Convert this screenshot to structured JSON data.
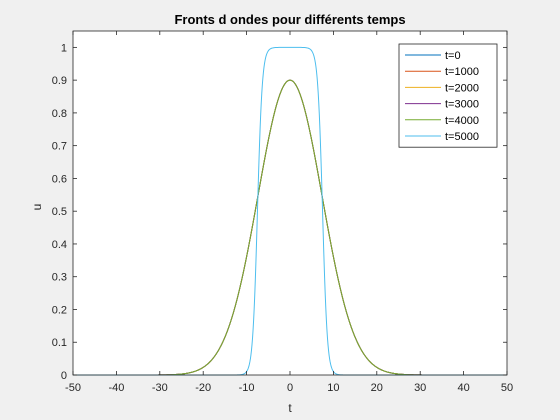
{
  "chart_data": {
    "type": "line",
    "title": "Fronts d ondes pour différents temps",
    "xlabel": "t",
    "ylabel": "u",
    "xlim": [
      -50,
      50
    ],
    "ylim": [
      0,
      1.05
    ],
    "xticks": [
      -50,
      -40,
      -30,
      -20,
      -10,
      0,
      10,
      20,
      30,
      40,
      50
    ],
    "yticks": [
      0,
      0.1,
      0.2,
      0.3,
      0.4,
      0.5,
      0.6,
      0.7,
      0.8,
      0.9,
      1
    ],
    "legend_position": "top-right",
    "grid": false,
    "series": [
      {
        "name": "t=0",
        "color": "#0072BD",
        "shape": "gaussian",
        "peak": 0.9,
        "sigma": 7.4
      },
      {
        "name": "t=1000",
        "color": "#D95319",
        "shape": "gaussian",
        "peak": 0.9,
        "sigma": 7.4
      },
      {
        "name": "t=2000",
        "color": "#EDB120",
        "shape": "gaussian",
        "peak": 0.9,
        "sigma": 7.4
      },
      {
        "name": "t=3000",
        "color": "#7E2F8E",
        "shape": "gaussian",
        "peak": 0.9,
        "sigma": 7.4
      },
      {
        "name": "t=4000",
        "color": "#77AC30",
        "shape": "gaussian",
        "peak": 0.9,
        "sigma": 7.4
      },
      {
        "name": "t=5000",
        "color": "#4DBEEE",
        "shape": "plateau",
        "peak": 1.0,
        "halfwidth": 7.5,
        "edge": 0.55
      }
    ]
  }
}
